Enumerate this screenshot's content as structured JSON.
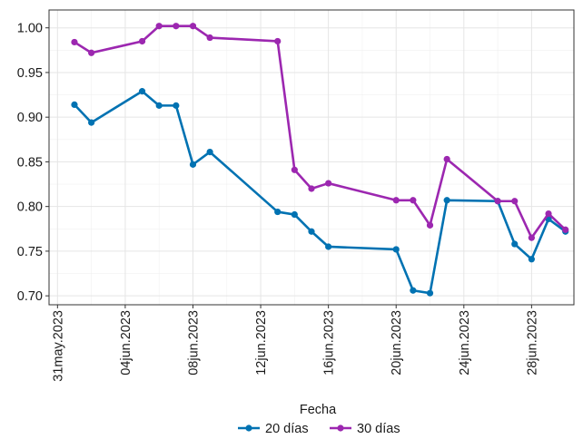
{
  "chart_data": {
    "type": "line",
    "title": "",
    "xlabel": "",
    "ylabel": "",
    "x_tick_labels": [
      "31may.2023",
      "04jun.2023",
      "08jun.2023",
      "12jun.2023",
      "16jun.2023",
      "20jun.2023",
      "24jun.2023",
      "28jun.2023"
    ],
    "x_tick_dates": [
      "2023-05-31",
      "2023-06-04",
      "2023-06-08",
      "2023-06-12",
      "2023-06-16",
      "2023-06-20",
      "2023-06-24",
      "2023-06-28"
    ],
    "xlim": [
      "2023-05-31",
      "2023-06-30"
    ],
    "y_ticks": [
      "0.70",
      "0.75",
      "0.80",
      "0.85",
      "0.90",
      "0.95",
      "1.00"
    ],
    "ylim": [
      0.69,
      1.02
    ],
    "grid": true,
    "legend_title": "Fecha",
    "legend_position": "bottom",
    "series": [
      {
        "name": "20 días",
        "color": "#0072B2",
        "points": [
          {
            "x": "2023-06-01",
            "y": 0.914
          },
          {
            "x": "2023-06-02",
            "y": 0.894
          },
          {
            "x": "2023-06-05",
            "y": 0.929
          },
          {
            "x": "2023-06-06",
            "y": 0.913
          },
          {
            "x": "2023-06-07",
            "y": 0.913
          },
          {
            "x": "2023-06-08",
            "y": 0.847
          },
          {
            "x": "2023-06-09",
            "y": 0.861
          },
          {
            "x": "2023-06-13",
            "y": 0.794
          },
          {
            "x": "2023-06-14",
            "y": 0.791
          },
          {
            "x": "2023-06-15",
            "y": 0.772
          },
          {
            "x": "2023-06-16",
            "y": 0.755
          },
          {
            "x": "2023-06-20",
            "y": 0.752
          },
          {
            "x": "2023-06-21",
            "y": 0.706
          },
          {
            "x": "2023-06-22",
            "y": 0.703
          },
          {
            "x": "2023-06-23",
            "y": 0.807
          },
          {
            "x": "2023-06-26",
            "y": 0.806
          },
          {
            "x": "2023-06-27",
            "y": 0.758
          },
          {
            "x": "2023-06-28",
            "y": 0.741
          },
          {
            "x": "2023-06-29",
            "y": 0.786
          },
          {
            "x": "2023-06-30",
            "y": 0.772
          }
        ]
      },
      {
        "name": "30 días",
        "color": "#9C27B0",
        "points": [
          {
            "x": "2023-06-01",
            "y": 0.984
          },
          {
            "x": "2023-06-02",
            "y": 0.972
          },
          {
            "x": "2023-06-05",
            "y": 0.985
          },
          {
            "x": "2023-06-06",
            "y": 1.002
          },
          {
            "x": "2023-06-07",
            "y": 1.002
          },
          {
            "x": "2023-06-08",
            "y": 1.002
          },
          {
            "x": "2023-06-09",
            "y": 0.989
          },
          {
            "x": "2023-06-13",
            "y": 0.985
          },
          {
            "x": "2023-06-14",
            "y": 0.841
          },
          {
            "x": "2023-06-15",
            "y": 0.82
          },
          {
            "x": "2023-06-16",
            "y": 0.826
          },
          {
            "x": "2023-06-20",
            "y": 0.807
          },
          {
            "x": "2023-06-21",
            "y": 0.807
          },
          {
            "x": "2023-06-22",
            "y": 0.779
          },
          {
            "x": "2023-06-23",
            "y": 0.853
          },
          {
            "x": "2023-06-26",
            "y": 0.806
          },
          {
            "x": "2023-06-27",
            "y": 0.806
          },
          {
            "x": "2023-06-28",
            "y": 0.765
          },
          {
            "x": "2023-06-29",
            "y": 0.792
          },
          {
            "x": "2023-06-30",
            "y": 0.774
          }
        ]
      }
    ]
  }
}
